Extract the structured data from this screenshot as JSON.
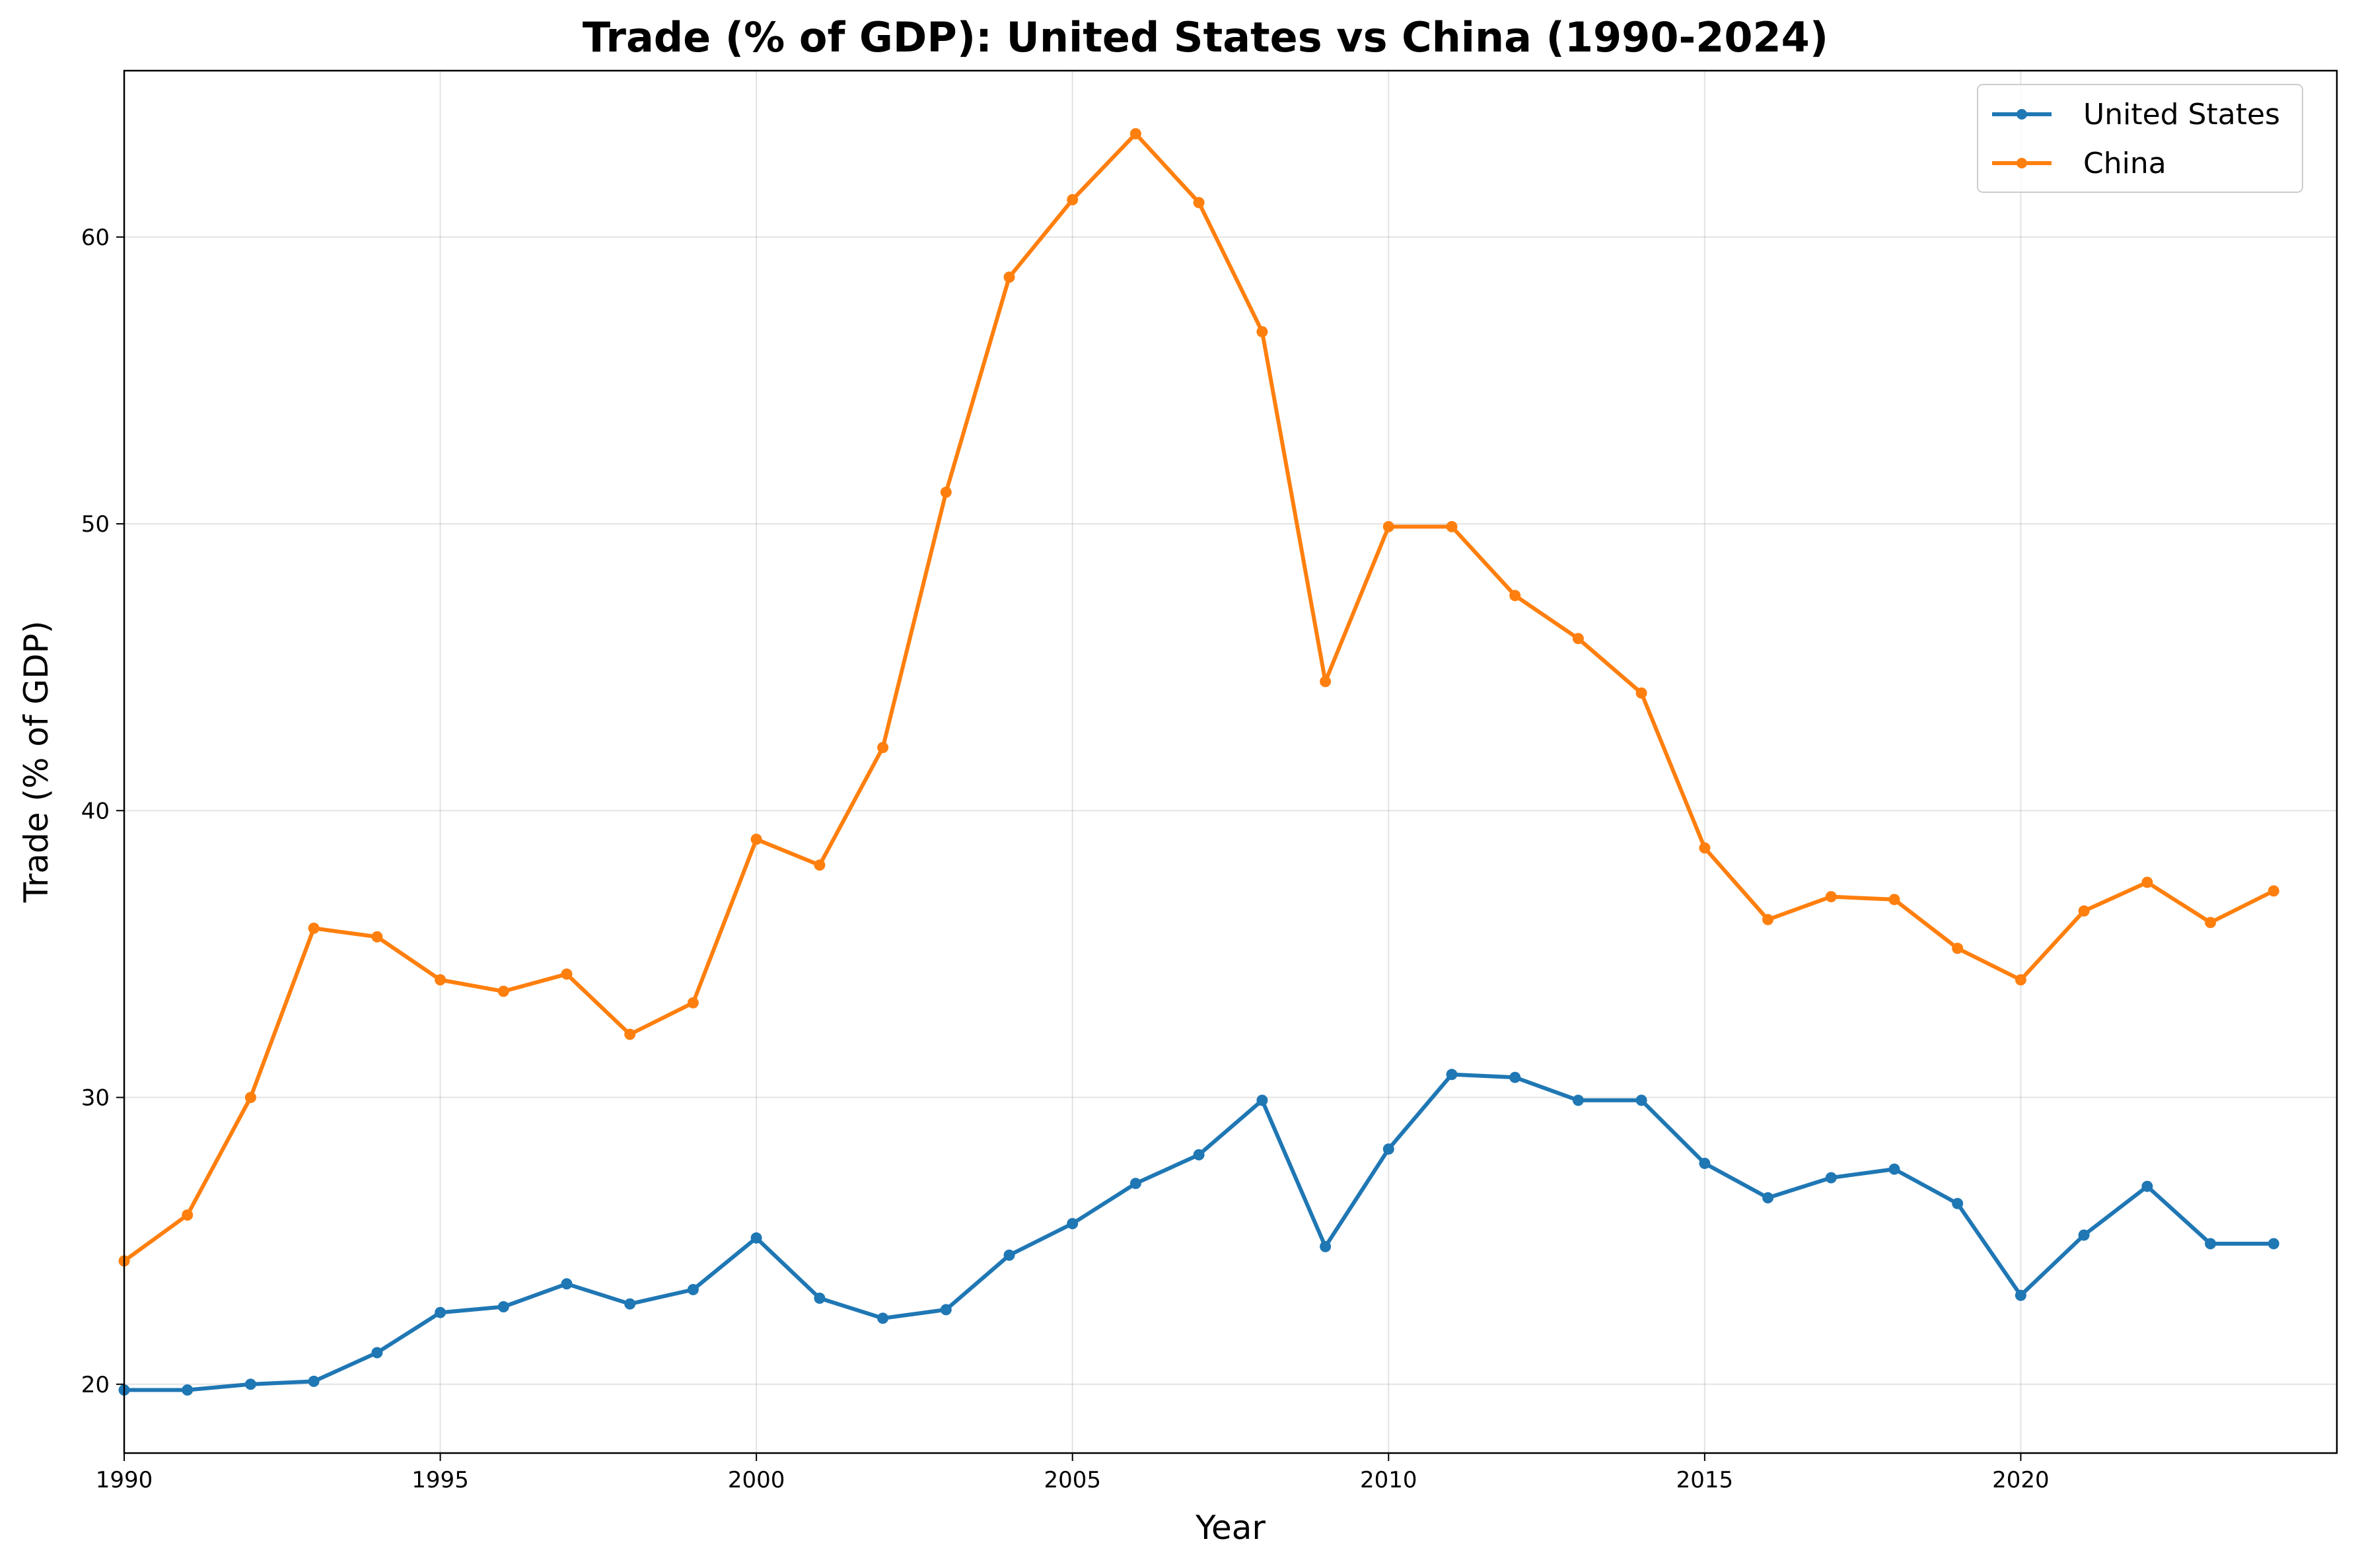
{
  "chart_data": {
    "type": "line",
    "title": "Trade (% of GDP): United States vs China (1990-2024)",
    "xlabel": "Year",
    "ylabel": "Trade (% of GDP)",
    "xlim": [
      1990,
      2025
    ],
    "ylim": [
      17.6,
      65.8
    ],
    "xticks": [
      1990,
      1995,
      2000,
      2005,
      2010,
      2015,
      2020
    ],
    "yticks": [
      20,
      30,
      40,
      50,
      60
    ],
    "grid": true,
    "legend_position": "top-right",
    "x": [
      1990,
      1991,
      1992,
      1993,
      1994,
      1995,
      1996,
      1997,
      1998,
      1999,
      2000,
      2001,
      2002,
      2003,
      2004,
      2005,
      2006,
      2007,
      2008,
      2009,
      2010,
      2011,
      2012,
      2013,
      2014,
      2015,
      2016,
      2017,
      2018,
      2019,
      2020,
      2021,
      2022,
      2023,
      2024
    ],
    "series": [
      {
        "name": "United States",
        "color": "#1f77b4",
        "values": [
          19.8,
          19.8,
          20.0,
          20.1,
          21.1,
          22.5,
          22.7,
          23.5,
          22.8,
          23.3,
          25.1,
          23.0,
          22.3,
          22.6,
          24.5,
          25.6,
          27.0,
          28.0,
          29.9,
          24.8,
          28.2,
          30.8,
          30.7,
          29.9,
          29.9,
          27.7,
          26.5,
          27.2,
          27.5,
          26.3,
          23.1,
          25.2,
          26.9,
          24.9,
          24.9
        ]
      },
      {
        "name": "China",
        "color": "#ff7f0e",
        "values": [
          24.3,
          25.9,
          30.0,
          35.9,
          35.6,
          34.1,
          33.7,
          34.3,
          32.2,
          33.3,
          39.0,
          38.1,
          42.2,
          51.1,
          58.6,
          61.3,
          63.6,
          61.2,
          56.7,
          44.5,
          49.9,
          49.9,
          47.5,
          46.0,
          44.1,
          38.7,
          36.2,
          37.0,
          36.9,
          35.2,
          34.1,
          36.5,
          37.5,
          36.1,
          37.2
        ]
      }
    ]
  }
}
